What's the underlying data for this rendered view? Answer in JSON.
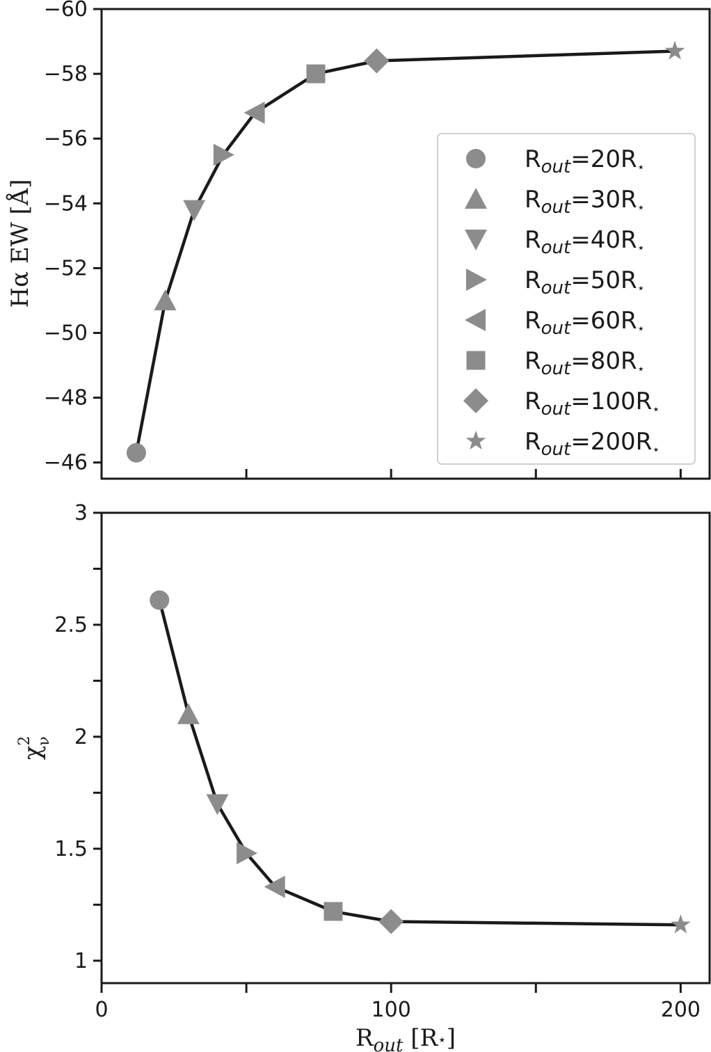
{
  "chart_data": [
    {
      "type": "line",
      "panel": "top",
      "ylabel": "Hα EW [Å]",
      "ylim": [
        -45.5,
        -60
      ],
      "yticks": [
        -46,
        -48,
        -50,
        -52,
        -54,
        -56,
        -58,
        -60
      ],
      "ytick_labels": [
        "−46",
        "−48",
        "−50",
        "−52",
        "−54",
        "−56",
        "−58",
        "−60"
      ],
      "y_inverted": true,
      "xlim": [
        0,
        210
      ],
      "xticks_major": [
        100,
        200
      ],
      "xticks_minor": [
        50,
        150
      ],
      "grid": false,
      "legend_position": "right",
      "legend": [
        {
          "marker": "circle",
          "base": "R",
          "sub": "out",
          "rest": "=20R",
          "star": "⋆"
        },
        {
          "marker": "triangle-up",
          "base": "R",
          "sub": "out",
          "rest": "=30R",
          "star": "⋆"
        },
        {
          "marker": "triangle-down",
          "base": "R",
          "sub": "out",
          "rest": "=40R",
          "star": "⋆"
        },
        {
          "marker": "triangle-right",
          "base": "R",
          "sub": "out",
          "rest": "=50R",
          "star": "⋆"
        },
        {
          "marker": "triangle-left",
          "base": "R",
          "sub": "out",
          "rest": "=60R",
          "star": "⋆"
        },
        {
          "marker": "square",
          "base": "R",
          "sub": "out",
          "rest": "=80R",
          "star": "⋆"
        },
        {
          "marker": "diamond",
          "base": "R",
          "sub": "out",
          "rest": "=100R",
          "star": "⋆"
        },
        {
          "marker": "star",
          "base": "R",
          "sub": "out",
          "rest": "=200R",
          "star": "⋆"
        }
      ],
      "points": [
        {
          "x": 12,
          "y": -46.3,
          "marker": "circle"
        },
        {
          "x": 22,
          "y": -51.0,
          "marker": "triangle-up"
        },
        {
          "x": 32,
          "y": -53.8,
          "marker": "triangle-down"
        },
        {
          "x": 42,
          "y": -55.5,
          "marker": "triangle-right"
        },
        {
          "x": 53,
          "y": -56.8,
          "marker": "triangle-left"
        },
        {
          "x": 74,
          "y": -58.0,
          "marker": "square"
        },
        {
          "x": 95,
          "y": -58.4,
          "marker": "diamond"
        },
        {
          "x": 198,
          "y": -58.7,
          "marker": "star"
        }
      ]
    },
    {
      "type": "line",
      "panel": "bottom",
      "ylabel_base": "χ",
      "ylabel_sup": "2",
      "ylabel_sub": "ν",
      "xlabel_base": "R",
      "xlabel_sub": "out",
      "xlabel_rest": " [R",
      "xlabel_star": "⋆",
      "xlabel_end": "]",
      "ylim": [
        0.9,
        3
      ],
      "yticks_major": [
        1,
        1.5,
        2,
        2.5,
        3
      ],
      "ytick_labels": [
        "1",
        "1.5",
        "2",
        "2.5",
        "3"
      ],
      "yticks_minor": [
        1.25,
        1.75,
        2.25,
        2.75
      ],
      "xlim": [
        0,
        210
      ],
      "xticks_major": [
        0,
        100,
        200
      ],
      "xtick_labels": [
        "0",
        "100",
        "200"
      ],
      "xticks_minor": [
        50,
        150
      ],
      "grid": false,
      "points": [
        {
          "x": 20,
          "y": 2.61,
          "marker": "circle"
        },
        {
          "x": 30,
          "y": 2.1,
          "marker": "triangle-up"
        },
        {
          "x": 40,
          "y": 1.7,
          "marker": "triangle-down"
        },
        {
          "x": 50,
          "y": 1.48,
          "marker": "triangle-right"
        },
        {
          "x": 60,
          "y": 1.33,
          "marker": "triangle-left"
        },
        {
          "x": 80,
          "y": 1.22,
          "marker": "square"
        },
        {
          "x": 100,
          "y": 1.175,
          "marker": "diamond"
        },
        {
          "x": 200,
          "y": 1.16,
          "marker": "star"
        }
      ]
    }
  ]
}
